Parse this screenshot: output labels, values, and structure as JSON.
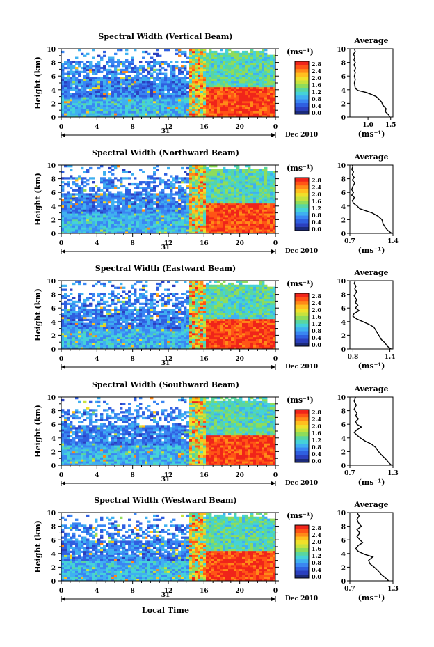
{
  "chart_data": {
    "type": "heatmap",
    "x_axis": {
      "ticks": [
        "0",
        "4",
        "8",
        "12",
        "16",
        "20",
        "0"
      ],
      "day_label": "31",
      "date_label": "Dec 2010",
      "xlabel": "Local Time",
      "range": [
        0,
        24
      ]
    },
    "y_axis": {
      "label": "Height (km)",
      "ticks": [
        "0",
        "2",
        "4",
        "6",
        "8",
        "10"
      ],
      "range": [
        0,
        10
      ]
    },
    "colorbar": {
      "unit": "(ms⁻¹)",
      "ticks": [
        "0.0",
        "0.4",
        "0.8",
        "1.2",
        "1.6",
        "2.0",
        "2.4",
        "2.8"
      ],
      "range": [
        0,
        2.8
      ],
      "colors": [
        "#1b2a7a",
        "#2a3fbf",
        "#2f5fe0",
        "#3a86f2",
        "#3fb0f0",
        "#45d2d8",
        "#59d6a0",
        "#8fdc5a",
        "#c7e23c",
        "#f0e02a",
        "#ffbf1f",
        "#ff8a18",
        "#ff5416",
        "#f0241a"
      ]
    },
    "panels": [
      {
        "title": "Spectral Width (Vertical Beam)",
        "avg_title": "Average",
        "avg_xticks": [
          "1.0",
          "1.5"
        ],
        "avg_xrange": [
          0.6,
          1.55
        ],
        "avg_xlabel": "(ms⁻¹)",
        "avg_profile": [
          [
            0,
            1.48
          ],
          [
            0.3,
            1.46
          ],
          [
            0.8,
            1.38
          ],
          [
            1.2,
            1.4
          ],
          [
            1.8,
            1.32
          ],
          [
            2.2,
            1.3
          ],
          [
            2.6,
            1.24
          ],
          [
            3.0,
            1.18
          ],
          [
            3.3,
            1.08
          ],
          [
            3.6,
            0.96
          ],
          [
            3.9,
            0.78
          ],
          [
            4.2,
            0.72
          ],
          [
            4.6,
            0.71
          ],
          [
            5.0,
            0.7
          ],
          [
            5.5,
            0.72
          ],
          [
            6.0,
            0.7
          ],
          [
            6.5,
            0.72
          ],
          [
            6.8,
            0.7
          ],
          [
            7.2,
            0.73
          ],
          [
            7.6,
            0.69
          ],
          [
            8.0,
            0.72
          ],
          [
            8.4,
            0.69
          ],
          [
            8.8,
            0.71
          ],
          [
            9.2,
            0.68
          ],
          [
            9.6,
            0.72
          ],
          [
            10,
            0.7
          ]
        ]
      },
      {
        "title": "Spectral Width (Northward Beam)",
        "avg_title": "Average",
        "avg_xticks": [
          "0.7",
          "1.4"
        ],
        "avg_xrange": [
          0.7,
          1.4
        ],
        "avg_xlabel": "(ms⁻¹)",
        "avg_profile": [
          [
            0,
            1.38
          ],
          [
            0.4,
            1.32
          ],
          [
            0.8,
            1.28
          ],
          [
            1.4,
            1.24
          ],
          [
            2.0,
            1.22
          ],
          [
            2.5,
            1.16
          ],
          [
            3.0,
            1.06
          ],
          [
            3.3,
            0.96
          ],
          [
            3.6,
            0.86
          ],
          [
            4.0,
            0.82
          ],
          [
            4.4,
            0.76
          ],
          [
            4.8,
            0.74
          ],
          [
            5.2,
            0.78
          ],
          [
            5.6,
            0.73
          ],
          [
            6.0,
            0.76
          ],
          [
            6.4,
            0.73
          ],
          [
            6.9,
            0.75
          ],
          [
            7.4,
            0.78
          ],
          [
            7.8,
            0.74
          ],
          [
            8.2,
            0.77
          ],
          [
            8.6,
            0.74
          ],
          [
            9.0,
            0.76
          ],
          [
            9.4,
            0.73
          ],
          [
            9.8,
            0.75
          ],
          [
            10,
            0.74
          ]
        ]
      },
      {
        "title": "Spectral Width (Eastward Beam)",
        "avg_title": "Average",
        "avg_xticks": [
          "0.8",
          "1.4"
        ],
        "avg_xrange": [
          0.75,
          1.45
        ],
        "avg_xlabel": "(ms⁻¹)",
        "avg_profile": [
          [
            0,
            1.42
          ],
          [
            0.4,
            1.36
          ],
          [
            0.9,
            1.32
          ],
          [
            1.4,
            1.26
          ],
          [
            2.0,
            1.22
          ],
          [
            2.6,
            1.18
          ],
          [
            3.2,
            1.14
          ],
          [
            3.6,
            1.06
          ],
          [
            4.0,
            0.96
          ],
          [
            4.4,
            0.86
          ],
          [
            4.8,
            0.8
          ],
          [
            5.2,
            0.82
          ],
          [
            5.6,
            0.9
          ],
          [
            6.0,
            0.84
          ],
          [
            6.4,
            0.88
          ],
          [
            6.8,
            0.84
          ],
          [
            7.2,
            0.86
          ],
          [
            7.8,
            0.82
          ],
          [
            8.4,
            0.86
          ],
          [
            8.8,
            0.83
          ],
          [
            9.2,
            0.85
          ],
          [
            9.6,
            0.82
          ],
          [
            10,
            0.84
          ]
        ]
      },
      {
        "title": "Spectral Width (Southward Beam)",
        "avg_title": "Average",
        "avg_xticks": [
          "0.7",
          "1.3"
        ],
        "avg_xrange": [
          0.7,
          1.3
        ],
        "avg_xlabel": "(ms⁻¹)",
        "avg_profile": [
          [
            0,
            1.28
          ],
          [
            0.4,
            1.24
          ],
          [
            0.9,
            1.2
          ],
          [
            1.5,
            1.14
          ],
          [
            2.0,
            1.1
          ],
          [
            2.6,
            1.06
          ],
          [
            3.1,
            1.0
          ],
          [
            3.5,
            0.92
          ],
          [
            3.9,
            0.86
          ],
          [
            4.4,
            0.8
          ],
          [
            4.8,
            0.76
          ],
          [
            5.2,
            0.8
          ],
          [
            5.6,
            0.86
          ],
          [
            6.0,
            0.8
          ],
          [
            6.4,
            0.78
          ],
          [
            6.8,
            0.82
          ],
          [
            7.2,
            0.78
          ],
          [
            7.6,
            0.8
          ],
          [
            8.2,
            0.76
          ],
          [
            8.8,
            0.79
          ],
          [
            9.4,
            0.76
          ],
          [
            10,
            0.78
          ]
        ]
      },
      {
        "title": "Spectral Width (Westward Beam)",
        "avg_title": "Average",
        "avg_xticks": [
          "0.7",
          "1.3"
        ],
        "avg_xrange": [
          0.7,
          1.3
        ],
        "avg_xlabel": "(ms⁻¹)",
        "avg_profile": [
          [
            0,
            1.24
          ],
          [
            0.4,
            1.2
          ],
          [
            0.9,
            1.14
          ],
          [
            1.4,
            1.1
          ],
          [
            2.0,
            1.04
          ],
          [
            2.5,
            0.98
          ],
          [
            3.0,
            0.96
          ],
          [
            3.5,
            1.02
          ],
          [
            3.9,
            0.9
          ],
          [
            4.3,
            0.82
          ],
          [
            4.7,
            0.78
          ],
          [
            5.2,
            0.82
          ],
          [
            5.6,
            0.88
          ],
          [
            6.0,
            0.84
          ],
          [
            6.5,
            0.8
          ],
          [
            7.0,
            0.84
          ],
          [
            7.5,
            0.8
          ],
          [
            8.0,
            0.86
          ],
          [
            8.5,
            0.82
          ],
          [
            9.0,
            0.8
          ],
          [
            9.5,
            0.83
          ],
          [
            10,
            0.8
          ]
        ]
      }
    ]
  }
}
